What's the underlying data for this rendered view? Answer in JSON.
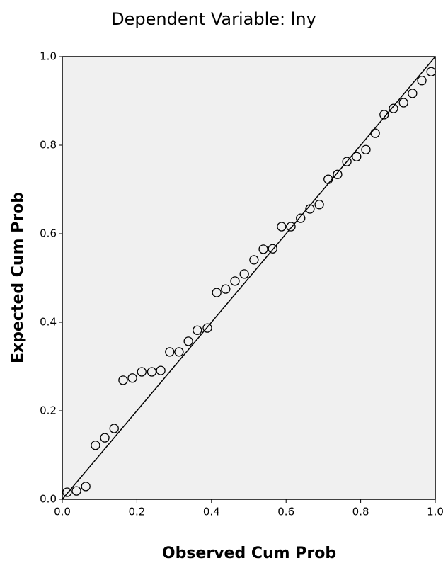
{
  "chart_data": {
    "type": "scatter",
    "title": "Dependent Variable: lny",
    "x_label": "Observed Cum Prob",
    "y_label": "Expected Cum Prob",
    "color": "#000000",
    "x": [
      0.013,
      0.038,
      0.063,
      0.089,
      0.114,
      0.139,
      0.163,
      0.188,
      0.213,
      0.24,
      0.264,
      0.288,
      0.313,
      0.338,
      0.362,
      0.389,
      0.414,
      0.438,
      0.463,
      0.488,
      0.514,
      0.539,
      0.564,
      0.588,
      0.613,
      0.639,
      0.664,
      0.689,
      0.713,
      0.738,
      0.763,
      0.789,
      0.814,
      0.839,
      0.863,
      0.888,
      0.915,
      0.939,
      0.964,
      0.989
    ],
    "values": [
      0.016,
      0.019,
      0.029,
      0.122,
      0.139,
      0.16,
      0.269,
      0.274,
      0.288,
      0.288,
      0.291,
      0.333,
      0.333,
      0.357,
      0.382,
      0.387,
      0.467,
      0.475,
      0.493,
      0.509,
      0.541,
      0.565,
      0.566,
      0.616,
      0.616,
      0.635,
      0.656,
      0.666,
      0.723,
      0.734,
      0.763,
      0.774,
      0.79,
      0.827,
      0.869,
      0.883,
      0.896,
      0.917,
      0.946,
      0.966
    ],
    "xlim": [
      0,
      1
    ],
    "ylim": [
      0,
      1
    ],
    "xticks": [
      {
        "value": 0,
        "label": "0.0"
      },
      {
        "value": 0.2,
        "label": "0.2"
      },
      {
        "value": 0.4,
        "label": "0.4"
      },
      {
        "value": 0.6,
        "label": "0.6"
      },
      {
        "value": 0.8,
        "label": "0.8"
      },
      {
        "value": 1,
        "label": "1.0"
      }
    ],
    "yticks": [
      {
        "value": 0,
        "label": "0.0"
      },
      {
        "value": 0.2,
        "label": "0.2"
      },
      {
        "value": 0.4,
        "label": "0.4"
      },
      {
        "value": 0.6,
        "label": "0.6"
      },
      {
        "value": 0.8,
        "label": "0.8"
      },
      {
        "value": 1,
        "label": "1.0"
      }
    ],
    "reference_line": true
  }
}
